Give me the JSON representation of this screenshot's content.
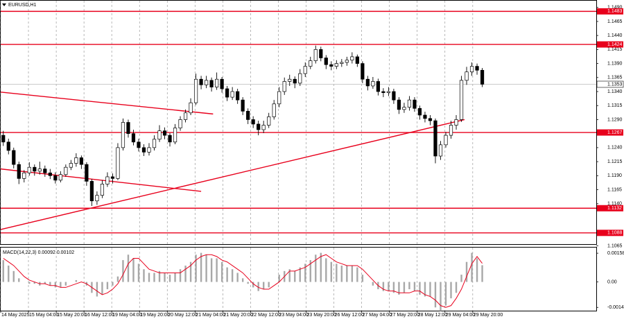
{
  "chart_data": {
    "type": "candlestick",
    "symbol": "EURUSD,H1",
    "grid": true,
    "ylim": [
      1.1068,
      1.1502
    ],
    "yticks": [
      {
        "value": 1.149,
        "label": "1.1490"
      },
      {
        "value": 1.1465,
        "label": "1.1465"
      },
      {
        "value": 1.144,
        "label": "1.1440"
      },
      {
        "value": 1.1415,
        "label": "1.1415"
      },
      {
        "value": 1.139,
        "label": "1.1390"
      },
      {
        "value": 1.1365,
        "label": "1.1365"
      },
      {
        "value": 1.134,
        "label": "1.1340"
      },
      {
        "value": 1.1315,
        "label": "1.1315"
      },
      {
        "value": 1.129,
        "label": "1.1290"
      },
      {
        "value": 1.124,
        "label": "1.1240"
      },
      {
        "value": 1.1215,
        "label": "1.1215"
      },
      {
        "value": 1.119,
        "label": "1.1190"
      },
      {
        "value": 1.1165,
        "label": "1.1165"
      },
      {
        "value": 1.114,
        "label": "1.1140"
      },
      {
        "value": 1.1065,
        "label": "1.1065"
      }
    ],
    "xlim": [
      0,
      114.4
    ],
    "xticks": [
      {
        "value": 0,
        "label": "14 May 2025"
      },
      {
        "value": 5.33,
        "label": "15 May 04:00"
      },
      {
        "value": 10.67,
        "label": "15 May 20:00"
      },
      {
        "value": 16,
        "label": "16 May 12:00"
      },
      {
        "value": 21.33,
        "label": "19 May 04:00"
      },
      {
        "value": 26.67,
        "label": "19 May 20:00"
      },
      {
        "value": 32,
        "label": "20 May 12:00"
      },
      {
        "value": 37.33,
        "label": "21 May 04:00"
      },
      {
        "value": 42.67,
        "label": "21 May 20:00"
      },
      {
        "value": 48,
        "label": "22 May 12:00"
      },
      {
        "value": 53.33,
        "label": "23 May 04:00"
      },
      {
        "value": 58.67,
        "label": "23 May 20:00"
      },
      {
        "value": 64,
        "label": "26 May 12:00"
      },
      {
        "value": 69.33,
        "label": "27 May 04:00"
      },
      {
        "value": 74.67,
        "label": "27 May 20:00"
      },
      {
        "value": 80,
        "label": "28 May 12:00"
      },
      {
        "value": 85.33,
        "label": "29 May 04:00"
      },
      {
        "value": 90.67,
        "label": "29 May 20:00"
      }
    ],
    "candles": [
      [
        1.1262,
        1.127,
        1.1243,
        1.125
      ],
      [
        1.125,
        1.1256,
        1.1228,
        1.1235
      ],
      [
        1.1235,
        1.124,
        1.1203,
        1.121
      ],
      [
        1.121,
        1.1215,
        1.1175,
        1.1185
      ],
      [
        1.1185,
        1.12,
        1.1178,
        1.1195
      ],
      [
        1.1195,
        1.1214,
        1.119,
        1.1205
      ],
      [
        1.1205,
        1.121,
        1.119,
        1.1198
      ],
      [
        1.1198,
        1.1215,
        1.1192,
        1.1202
      ],
      [
        1.1202,
        1.1208,
        1.1188,
        1.1195
      ],
      [
        1.1195,
        1.1202,
        1.1184,
        1.119
      ],
      [
        1.119,
        1.1196,
        1.1176,
        1.1182
      ],
      [
        1.1182,
        1.1198,
        1.1178,
        1.1192
      ],
      [
        1.1192,
        1.121,
        1.1188,
        1.1205
      ],
      [
        1.1205,
        1.1218,
        1.12,
        1.1212
      ],
      [
        1.1212,
        1.123,
        1.1206,
        1.1222
      ],
      [
        1.1222,
        1.1226,
        1.1202,
        1.121
      ],
      [
        1.121,
        1.1214,
        1.1172,
        1.118
      ],
      [
        1.118,
        1.1184,
        1.1136,
        1.1145
      ],
      [
        1.1145,
        1.1162,
        1.1138,
        1.1155
      ],
      [
        1.1155,
        1.1182,
        1.115,
        1.1175
      ],
      [
        1.1175,
        1.1196,
        1.117,
        1.1188
      ],
      [
        1.1188,
        1.1194,
        1.1176,
        1.1185
      ],
      [
        1.1185,
        1.1248,
        1.1182,
        1.124
      ],
      [
        1.124,
        1.1292,
        1.1235,
        1.1285
      ],
      [
        1.1285,
        1.129,
        1.1258,
        1.1265
      ],
      [
        1.1265,
        1.1272,
        1.1244,
        1.125
      ],
      [
        1.125,
        1.1256,
        1.1233,
        1.124
      ],
      [
        1.124,
        1.1246,
        1.1225,
        1.1232
      ],
      [
        1.1232,
        1.1248,
        1.1226,
        1.124
      ],
      [
        1.124,
        1.1262,
        1.1235,
        1.1255
      ],
      [
        1.1255,
        1.128,
        1.125,
        1.127
      ],
      [
        1.127,
        1.1276,
        1.1255,
        1.1262
      ],
      [
        1.1262,
        1.1266,
        1.1242,
        1.125
      ],
      [
        1.125,
        1.1282,
        1.1246,
        1.1275
      ],
      [
        1.1275,
        1.1296,
        1.127,
        1.129
      ],
      [
        1.129,
        1.1308,
        1.1285,
        1.1302
      ],
      [
        1.1302,
        1.1328,
        1.1298,
        1.132
      ],
      [
        1.132,
        1.1372,
        1.1316,
        1.1362
      ],
      [
        1.1362,
        1.1368,
        1.1344,
        1.1352
      ],
      [
        1.1352,
        1.1368,
        1.1346,
        1.136
      ],
      [
        1.136,
        1.1365,
        1.134,
        1.1348
      ],
      [
        1.1348,
        1.1374,
        1.1343,
        1.1362
      ],
      [
        1.1362,
        1.1366,
        1.1338,
        1.1345
      ],
      [
        1.1345,
        1.135,
        1.1323,
        1.133
      ],
      [
        1.133,
        1.1348,
        1.1325,
        1.134
      ],
      [
        1.134,
        1.1345,
        1.1318,
        1.1325
      ],
      [
        1.1325,
        1.133,
        1.1298,
        1.1305
      ],
      [
        1.1305,
        1.131,
        1.1282,
        1.129
      ],
      [
        1.129,
        1.1296,
        1.1275,
        1.1282
      ],
      [
        1.1282,
        1.1288,
        1.1262,
        1.1272
      ],
      [
        1.1272,
        1.1288,
        1.1266,
        1.128
      ],
      [
        1.128,
        1.1302,
        1.1275,
        1.1295
      ],
      [
        1.1295,
        1.1325,
        1.129,
        1.1318
      ],
      [
        1.1318,
        1.1348,
        1.1312,
        1.134
      ],
      [
        1.134,
        1.1365,
        1.1334,
        1.1358
      ],
      [
        1.1358,
        1.137,
        1.135,
        1.1362
      ],
      [
        1.1362,
        1.1367,
        1.1346,
        1.1355
      ],
      [
        1.1355,
        1.138,
        1.135,
        1.1372
      ],
      [
        1.1372,
        1.1392,
        1.1366,
        1.1385
      ],
      [
        1.1385,
        1.1402,
        1.138,
        1.1395
      ],
      [
        1.1395,
        1.1422,
        1.139,
        1.1415
      ],
      [
        1.1415,
        1.142,
        1.1394,
        1.14
      ],
      [
        1.14,
        1.1405,
        1.138,
        1.1388
      ],
      [
        1.1388,
        1.1394,
        1.1378,
        1.1385
      ],
      [
        1.1385,
        1.1396,
        1.138,
        1.139
      ],
      [
        1.139,
        1.1398,
        1.1384,
        1.1392
      ],
      [
        1.1392,
        1.1402,
        1.1386,
        1.1396
      ],
      [
        1.1396,
        1.141,
        1.139,
        1.1402
      ],
      [
        1.1402,
        1.1406,
        1.1384,
        1.139
      ],
      [
        1.139,
        1.1394,
        1.1355,
        1.1362
      ],
      [
        1.1362,
        1.1368,
        1.1342,
        1.135
      ],
      [
        1.135,
        1.1366,
        1.1345,
        1.1358
      ],
      [
        1.1358,
        1.1363,
        1.1333,
        1.134
      ],
      [
        1.134,
        1.1346,
        1.133,
        1.1338
      ],
      [
        1.1338,
        1.1348,
        1.1332,
        1.134
      ],
      [
        1.134,
        1.1345,
        1.1318,
        1.1325
      ],
      [
        1.1325,
        1.133,
        1.13,
        1.1308
      ],
      [
        1.1308,
        1.132,
        1.1302,
        1.1312
      ],
      [
        1.1312,
        1.1332,
        1.1306,
        1.1325
      ],
      [
        1.1325,
        1.133,
        1.1304,
        1.131
      ],
      [
        1.131,
        1.1315,
        1.129,
        1.1298
      ],
      [
        1.1298,
        1.1304,
        1.1285,
        1.1292
      ],
      [
        1.1292,
        1.1298,
        1.128,
        1.1288
      ],
      [
        1.1288,
        1.1292,
        1.1212,
        1.1225
      ],
      [
        1.1225,
        1.1252,
        1.1218,
        1.1245
      ],
      [
        1.1245,
        1.1268,
        1.124,
        1.1262
      ],
      [
        1.1262,
        1.1288,
        1.1256,
        1.128
      ],
      [
        1.128,
        1.1298,
        1.1272,
        1.129
      ],
      [
        1.129,
        1.1368,
        1.1286,
        1.136
      ],
      [
        1.136,
        1.1384,
        1.1352,
        1.1375
      ],
      [
        1.1375,
        1.1392,
        1.1368,
        1.1385
      ],
      [
        1.1385,
        1.139,
        1.137,
        1.1378
      ],
      [
        1.1378,
        1.1382,
        1.1348,
        1.1353
      ]
    ],
    "up_color": "#ffffff",
    "down_color": "#000000",
    "levels": [
      {
        "value": 1.1483,
        "label": "1.1483",
        "color": "#e8001c"
      },
      {
        "value": 1.1424,
        "label": "1.1424",
        "color": "#e8001c"
      },
      {
        "value": 1.1267,
        "label": "1.1267",
        "color": "#e8001c"
      },
      {
        "value": 1.1132,
        "label": "1.1132",
        "color": "#e8001c"
      },
      {
        "value": 1.1088,
        "label": "1.1088",
        "color": "#e8001c"
      }
    ],
    "current_price": {
      "value": 1.1353,
      "label": "1.1353",
      "color": "#b8b8b8"
    },
    "trendlines": [
      {
        "color": "#e8001c",
        "x": [
          0,
          40.8
        ],
        "y": [
          1.1339,
          1.13
        ]
      },
      {
        "color": "#e8001c",
        "x": [
          0,
          38.5
        ],
        "y": [
          1.1202,
          1.1162
        ]
      },
      {
        "color": "#e8001c",
        "x": [
          0,
          89.1
        ],
        "y": [
          1.1094,
          1.129
        ]
      }
    ],
    "macd": {
      "title": "MACD(14,22,3) 0.00092 0.00102",
      "ylim": [
        -0.00158,
        0.00189
      ],
      "yticks": [
        {
          "value": 0.00158,
          "label": "0.00158"
        },
        {
          "value": 0,
          "label": "0.00"
        },
        {
          "value": -0.0014,
          "label": "-0.0014"
        }
      ],
      "histogram_color": "#a8a8a8",
      "signal_color": "#e8001c",
      "histogram": [
        0.0012,
        0.0009,
        0.0006,
        0.0002,
        0.0,
        -0.0001,
        -0.0001,
        -0.0002,
        -0.0001,
        -0.0002,
        -0.0003,
        -0.0003,
        -0.0002,
        0.0,
        0.0001,
        0.0,
        -0.0002,
        -0.0006,
        -0.0008,
        -0.0007,
        -0.0004,
        -0.0002,
        0.0003,
        0.0012,
        0.0015,
        0.0013,
        0.001,
        0.0007,
        0.0005,
        0.0005,
        0.0006,
        0.0005,
        0.0004,
        0.0005,
        0.0007,
        0.0009,
        0.0011,
        0.0015,
        0.0016,
        0.0015,
        0.0013,
        0.0013,
        0.0011,
        0.0008,
        0.0007,
        0.0005,
        0.0002,
        -0.0001,
        -0.0003,
        -0.0005,
        -0.0004,
        -0.0003,
        0.0,
        0.0004,
        0.0006,
        0.0007,
        0.0006,
        0.0008,
        0.001,
        0.0012,
        0.0015,
        0.0016,
        0.0013,
        0.0011,
        0.001,
        0.0009,
        0.0009,
        0.0009,
        0.0008,
        0.0004,
        0.0,
        -0.0002,
        -0.0004,
        -0.0005,
        -0.0005,
        -0.0006,
        -0.0007,
        -0.0006,
        -0.0004,
        -0.0005,
        -0.0007,
        -0.0008,
        -0.0008,
        -0.0014,
        -0.0016,
        -0.0013,
        -0.0009,
        -0.0006,
        0.0004,
        0.0011,
        0.0016,
        0.0013,
        0.00092
      ],
      "signal": [
        0.0013,
        0.0011,
        0.0009,
        0.0006,
        0.0003,
        0.0001,
        0.0,
        -0.0001,
        -0.0001,
        -0.0002,
        -0.0002,
        -0.0003,
        -0.0003,
        -0.0002,
        -0.0001,
        0.0,
        -0.0001,
        -0.0003,
        -0.0005,
        -0.0007,
        -0.0006,
        -0.0004,
        -0.0001,
        0.0004,
        0.001,
        0.0013,
        0.0013,
        0.001,
        0.0007,
        0.0006,
        0.0005,
        0.0005,
        0.0005,
        0.0005,
        0.0005,
        0.0007,
        0.0009,
        0.0012,
        0.0014,
        0.0015,
        0.0015,
        0.0014,
        0.0012,
        0.0011,
        0.0009,
        0.0007,
        0.0005,
        0.0002,
        -0.0001,
        -0.0003,
        -0.0004,
        -0.0004,
        -0.0002,
        0.0,
        0.0003,
        0.0006,
        0.0006,
        0.0007,
        0.0008,
        0.001,
        0.0012,
        0.0014,
        0.0015,
        0.0013,
        0.0011,
        0.001,
        0.0009,
        0.0009,
        0.0009,
        0.0007,
        0.0004,
        0.0001,
        -0.0002,
        -0.0004,
        -0.0005,
        -0.0005,
        -0.0006,
        -0.0006,
        -0.0006,
        -0.0005,
        -0.0005,
        -0.0007,
        -0.0008,
        -0.001,
        -0.0013,
        -0.0014,
        -0.0013,
        -0.0009,
        -0.0004,
        0.0003,
        0.001,
        0.0014,
        0.00102
      ]
    }
  }
}
